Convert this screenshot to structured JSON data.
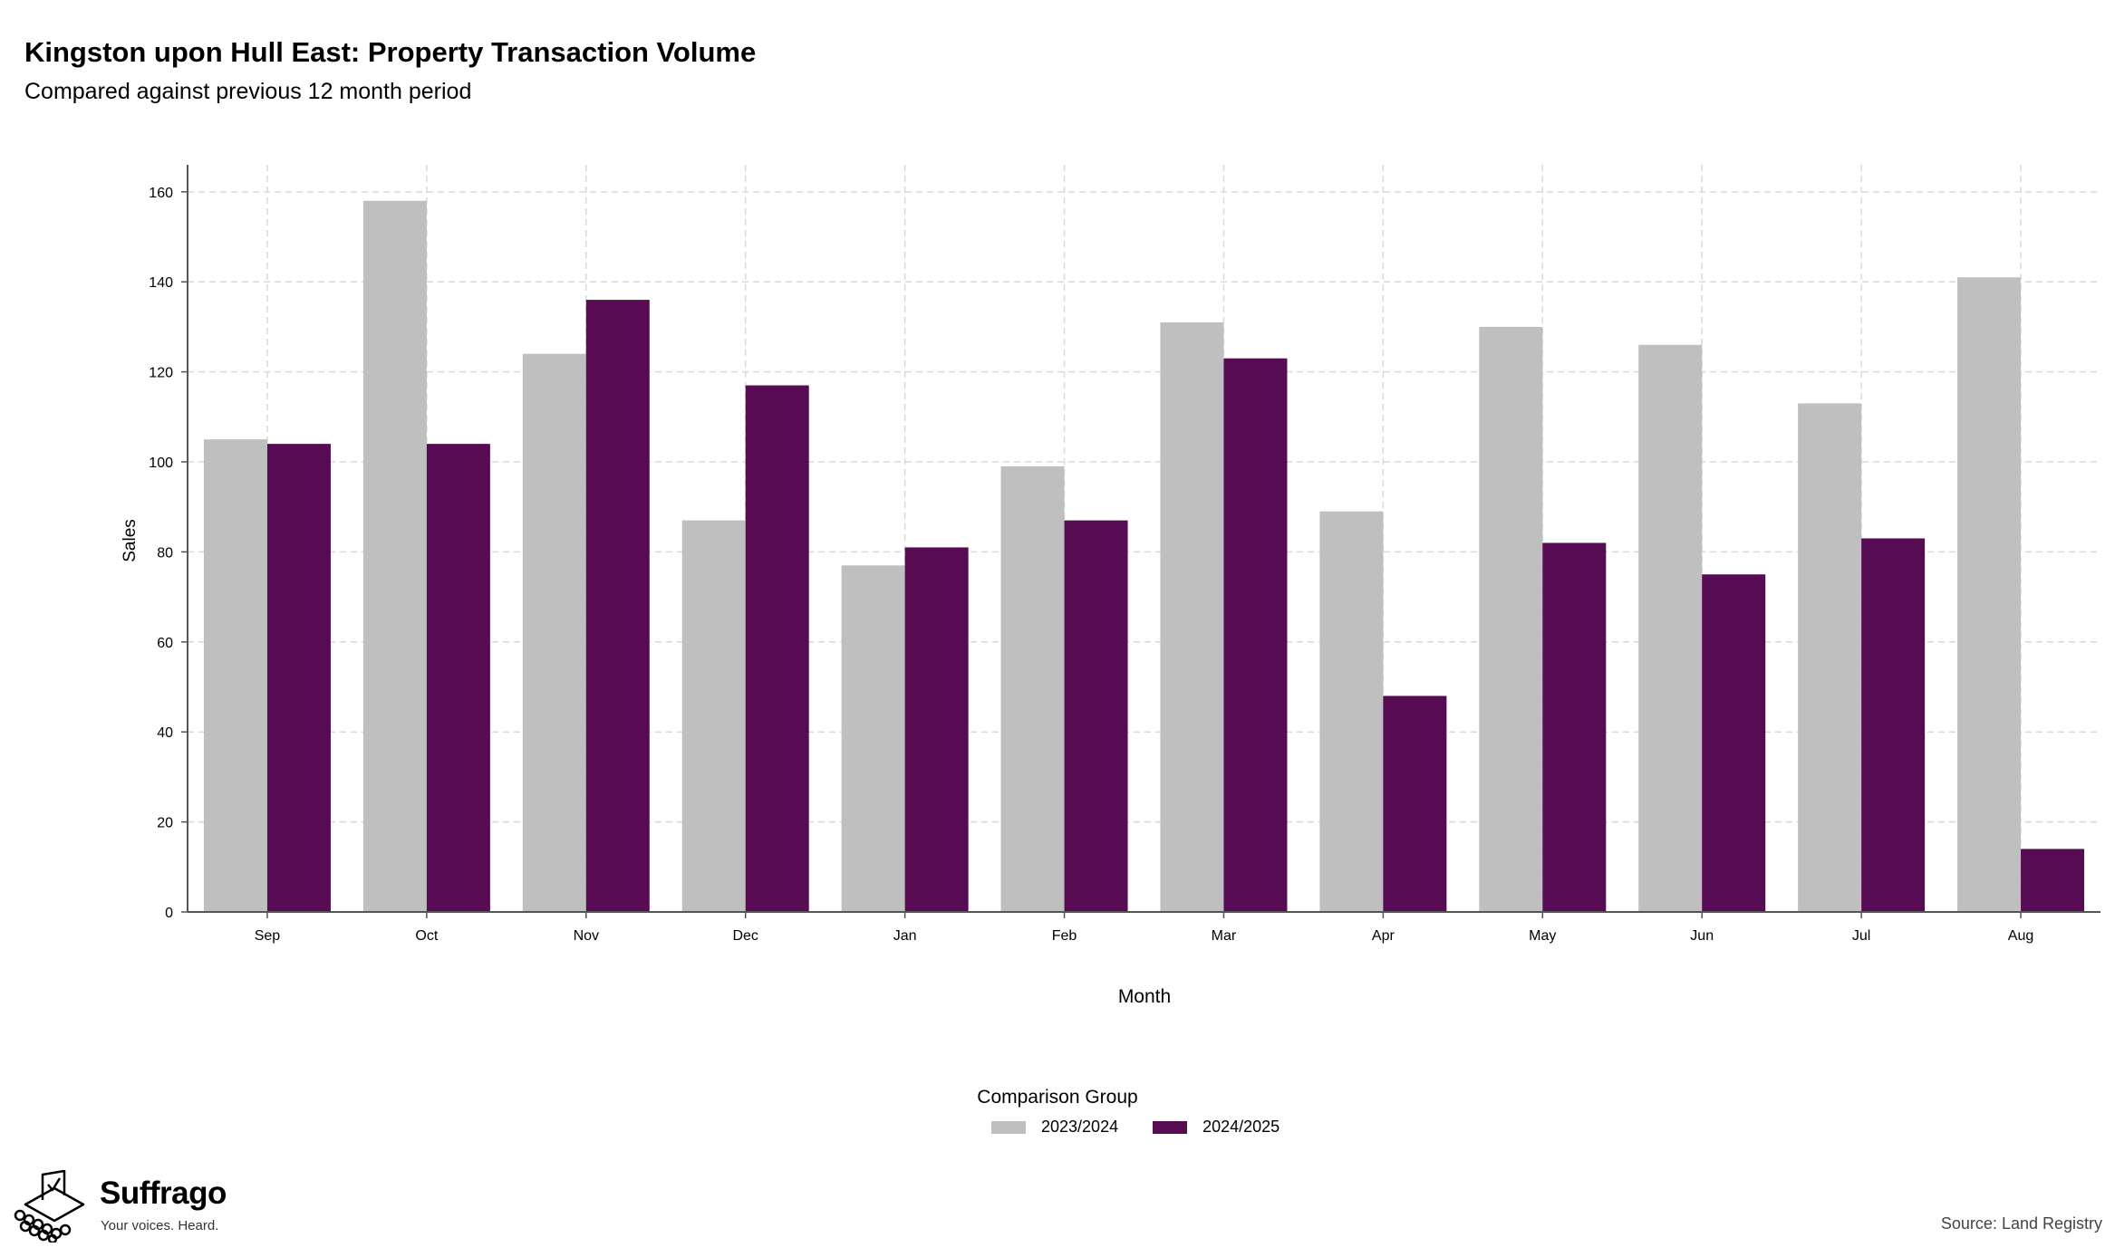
{
  "header": {
    "title": "Kingston upon Hull East: Property Transaction Volume",
    "subtitle": "Compared against previous 12 month period"
  },
  "legend": {
    "title": "Comparison Group",
    "items": [
      {
        "label": "2023/2024",
        "color": "#bfbfbf"
      },
      {
        "label": "2024/2025",
        "color": "#560b53"
      }
    ]
  },
  "footer": {
    "brand": "Suffrago",
    "tagline": "Your voices. Heard.",
    "source": "Source: Land Registry",
    "logo_icon": "ballot-box-icon"
  },
  "chart_data": {
    "type": "bar",
    "xlabel": "Month",
    "ylabel": "Sales",
    "ylim": [
      0,
      166
    ],
    "yticks": [
      0,
      20,
      40,
      60,
      80,
      100,
      120,
      140,
      160
    ],
    "grid": true,
    "legend_position": "bottom",
    "categories": [
      "Sep",
      "Oct",
      "Nov",
      "Dec",
      "Jan",
      "Feb",
      "Mar",
      "Apr",
      "May",
      "Jun",
      "Jul",
      "Aug"
    ],
    "series": [
      {
        "name": "2023/2024",
        "color": "#bfbfbf",
        "values": [
          105,
          158,
          124,
          87,
          77,
          99,
          131,
          89,
          130,
          126,
          113,
          141
        ]
      },
      {
        "name": "2024/2025",
        "color": "#560b53",
        "values": [
          104,
          104,
          136,
          117,
          81,
          87,
          123,
          48,
          82,
          75,
          83,
          14
        ]
      }
    ]
  }
}
